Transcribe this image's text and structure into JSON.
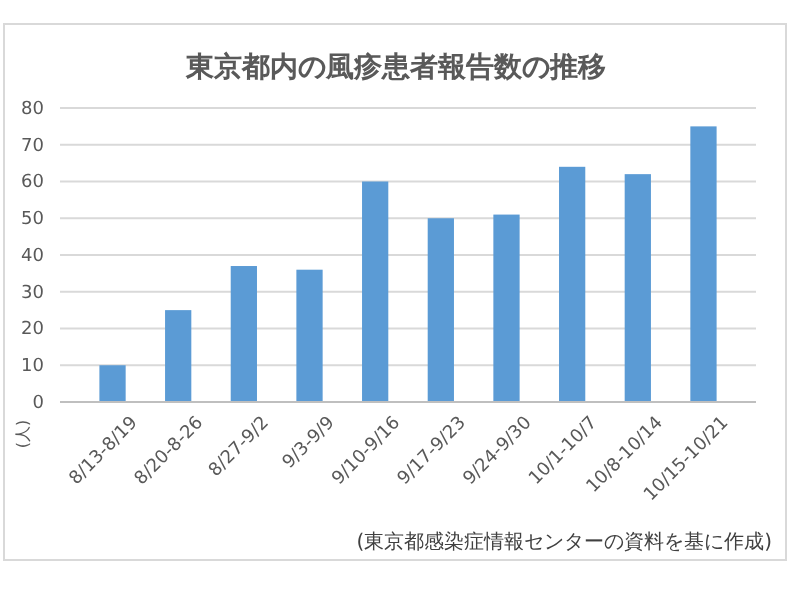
{
  "chart_data": {
    "type": "bar",
    "title": "東京都内の風疹患者報告数の推移",
    "ylabel": "(人)",
    "categories": [
      "8/13-8/19",
      "8/20-8-26",
      "8/27-9/2",
      "9/3-9/9",
      "9/10-9/16",
      "9/17-9/23",
      "9/24-9/30",
      "10/1-10/7",
      "10/8-10/14",
      "10/15-10/21"
    ],
    "values": [
      10,
      25,
      37,
      36,
      60,
      50,
      51,
      64,
      62,
      75
    ],
    "color": "#5b9bd5",
    "ylim": [
      0,
      80
    ],
    "yticks": [
      0,
      10,
      20,
      30,
      40,
      50,
      60,
      70,
      80
    ],
    "grid": "y",
    "annotations": [
      "(東京都感染症情報センターの資料を基に作成)"
    ]
  }
}
